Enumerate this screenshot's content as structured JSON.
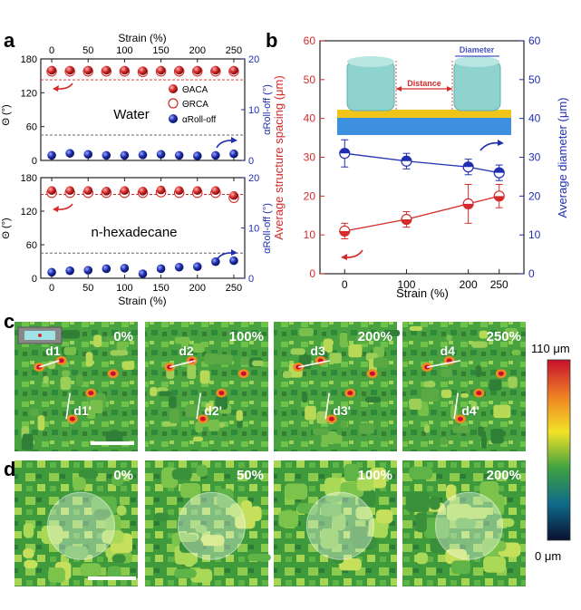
{
  "colors": {
    "red": "#d42a2a",
    "blue": "#1f2fb0",
    "water_blue": "#3a7fd4",
    "yellow_film": "#f0c419",
    "pillar": "#8fd3cf",
    "heat_high": "#c8102e",
    "heat_mid": "#f2e227",
    "heat_green": "#3fa142",
    "heat_low": "#0a1030"
  },
  "panel_labels": [
    "a",
    "b",
    "c",
    "d"
  ],
  "panel_a": {
    "top_axis_label": "Strain (%)",
    "bottom_axis_label": "Strain (%)",
    "x_ticks": [
      "0",
      "50",
      "100",
      "150",
      "200",
      "250"
    ],
    "top": {
      "y_left_label": "Θ (°)",
      "y_right_label": "αRoll-off (°)",
      "left_ticks": [
        "0",
        "60",
        "120",
        "180"
      ],
      "right_ticks": [
        "0",
        "10",
        "20"
      ],
      "liquid_label": "Water",
      "legend": [
        "ΘACA",
        "ΘRCA",
        "αRoll-off"
      ]
    },
    "bottom": {
      "y_left_label": "Θ (°)",
      "y_right_label": "αRoll-off (°)",
      "left_ticks": [
        "0",
        "60",
        "120",
        "180"
      ],
      "right_ticks": [
        "0",
        "10",
        "20"
      ],
      "liquid_label": "n-hexadecane"
    }
  },
  "chart_data": [
    {
      "type": "scatter",
      "panel": "a-top",
      "x": [
        0,
        25,
        50,
        75,
        100,
        125,
        150,
        175,
        200,
        225,
        250
      ],
      "xlim": [
        -15,
        265
      ],
      "xlabel": "Strain (%)",
      "ylabel": "Θ (°)",
      "ylabel_right": "αRoll-off (°)",
      "ylim": [
        0,
        180
      ],
      "ylim_right": [
        0,
        20
      ],
      "series": [
        {
          "name": "ΘACA",
          "axis": "left",
          "values": [
            160,
            160,
            160,
            160,
            160,
            159,
            160,
            160,
            160,
            160,
            160
          ]
        },
        {
          "name": "ΘRCA",
          "axis": "left",
          "values": [
            158,
            158,
            158,
            158,
            158,
            157,
            158,
            158,
            158,
            158,
            158
          ]
        },
        {
          "name": "αRoll-off",
          "axis": "right",
          "values": [
            1.0,
            1.4,
            1.2,
            1.0,
            1.0,
            1.1,
            1.2,
            1.0,
            0.9,
            1.0,
            1.3
          ]
        }
      ],
      "reference_lines_left": [
        143,
        45
      ]
    },
    {
      "type": "scatter",
      "panel": "a-bottom",
      "x": [
        0,
        25,
        50,
        75,
        100,
        125,
        150,
        175,
        200,
        225,
        250
      ],
      "xlim": [
        -15,
        265
      ],
      "xlabel": "Strain (%)",
      "ylabel": "Θ (°)",
      "ylabel_right": "αRoll-off (°)",
      "ylim": [
        0,
        180
      ],
      "ylim_right": [
        0,
        20
      ],
      "series": [
        {
          "name": "ΘACA",
          "axis": "left",
          "values": [
            157,
            157,
            157,
            156,
            157,
            156,
            158,
            157,
            157,
            157,
            148
          ]
        },
        {
          "name": "ΘRCA",
          "axis": "left",
          "values": [
            153,
            153,
            153,
            153,
            153,
            153,
            154,
            153,
            153,
            153,
            144
          ]
        },
        {
          "name": "αRoll-off",
          "axis": "right",
          "values": [
            1.2,
            1.5,
            1.6,
            1.9,
            2.0,
            0.9,
            1.9,
            2.2,
            2.3,
            3.3,
            3.5
          ]
        }
      ],
      "reference_lines_left": [
        150,
        45
      ]
    },
    {
      "type": "line",
      "panel": "b",
      "x": [
        0,
        100,
        200,
        250
      ],
      "xlim": [
        -40,
        290
      ],
      "xlabel": "Strain (%)",
      "ylabel": "Average structure spacing  (μm)",
      "ylabel_right": "Average diameter (μm)",
      "ylim": [
        0,
        60
      ],
      "ylim_right": [
        0,
        60
      ],
      "x_ticks": [
        "0",
        "100",
        "200",
        "250"
      ],
      "y_ticks": [
        "0",
        "10",
        "20",
        "30",
        "40",
        "50",
        "60"
      ],
      "series": [
        {
          "name": "Average structure spacing",
          "axis": "left",
          "values": [
            11,
            14,
            18,
            20
          ],
          "errors": [
            2,
            2,
            5,
            3
          ]
        },
        {
          "name": "Average diameter",
          "axis": "right",
          "values": [
            31,
            29,
            27.5,
            26
          ],
          "errors": [
            3.5,
            2,
            2,
            2
          ]
        }
      ],
      "inset_labels": {
        "distance": "Distance",
        "diameter": "Diameter"
      }
    }
  ],
  "panel_c": {
    "frames": [
      {
        "strain": "0%",
        "d": "d1",
        "dprime": "d1'"
      },
      {
        "strain": "100%",
        "d": "d2",
        "dprime": "d2'"
      },
      {
        "strain": "200%",
        "d": "d3",
        "dprime": "d3'"
      },
      {
        "strain": "250%",
        "d": "d4",
        "dprime": "d4'"
      }
    ],
    "colorbar_max": "110 μm",
    "colorbar_min": "0 μm"
  },
  "panel_d": {
    "frames": [
      {
        "strain": "0%"
      },
      {
        "strain": "50%"
      },
      {
        "strain": "100%"
      },
      {
        "strain": "200%"
      }
    ]
  }
}
